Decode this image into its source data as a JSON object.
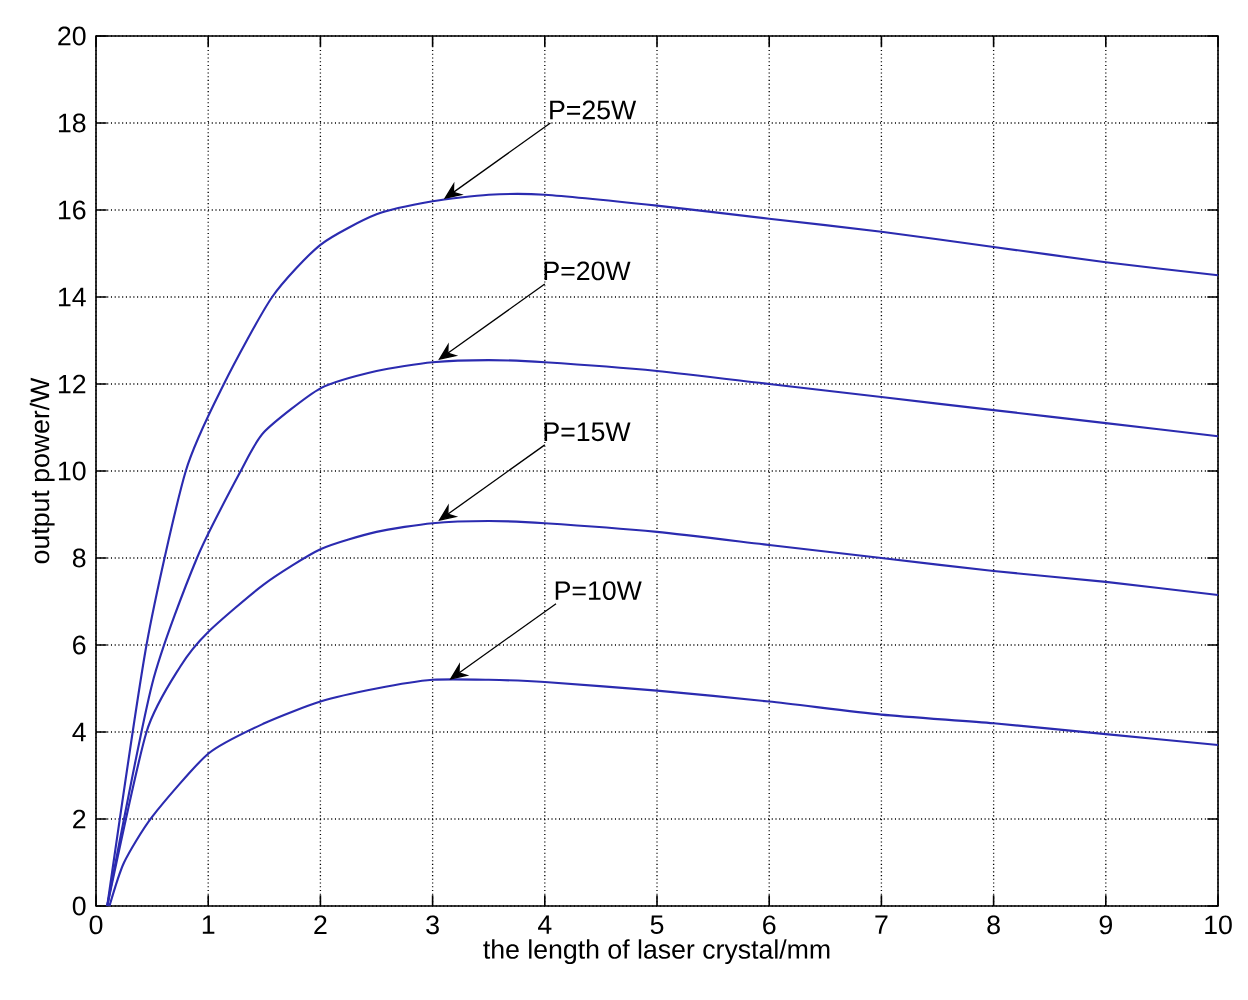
{
  "chart_data": {
    "type": "line",
    "xlabel": "the length of laser crystal/mm",
    "ylabel": "output power/W",
    "xlim": [
      0,
      10
    ],
    "ylim": [
      0,
      20
    ],
    "xticks": [
      0,
      1,
      2,
      3,
      4,
      5,
      6,
      7,
      8,
      9,
      10
    ],
    "yticks": [
      0,
      2,
      4,
      6,
      8,
      10,
      12,
      14,
      16,
      18,
      20
    ],
    "grid": true,
    "line_style": "solid",
    "marker": "none",
    "series": [
      {
        "color": "#2b2bb0",
        "x": [
          0.1,
          0.45,
          0.8,
          1.14,
          1.57,
          2,
          2.5,
          3,
          3.5,
          4,
          5,
          6,
          7,
          8,
          9,
          10
        ],
        "values": [
          0,
          6,
          10,
          12,
          14,
          15.2,
          15.9,
          16.2,
          16.35,
          16.35,
          16.1,
          15.8,
          15.5,
          15.15,
          14.8,
          14.5
        ]
      },
      {
        "color": "#2b2bb0",
        "x": [
          0.1,
          0.5,
          0.9,
          1.29,
          1.5,
          2,
          2.5,
          3,
          3.5,
          4,
          5,
          6,
          7,
          8,
          9,
          10
        ],
        "values": [
          0,
          5.1,
          8,
          10,
          10.9,
          11.9,
          12.3,
          12.5,
          12.55,
          12.5,
          12.3,
          12,
          11.7,
          11.4,
          11.1,
          10.8
        ]
      },
      {
        "color": "#2b2bb0",
        "x": [
          0.1,
          0.45,
          0.75,
          1,
          1.5,
          2,
          2.5,
          3,
          3.5,
          4,
          5,
          6,
          7,
          8,
          9,
          10
        ],
        "values": [
          0,
          4,
          5.5,
          6.3,
          7.4,
          8.2,
          8.6,
          8.8,
          8.85,
          8.8,
          8.6,
          8.3,
          8,
          7.7,
          7.45,
          7.15
        ]
      },
      {
        "color": "#2b2bb0",
        "x": [
          0.12,
          0.25,
          0.5,
          1,
          1.5,
          2,
          2.5,
          3,
          3.5,
          4,
          5,
          6,
          7,
          8,
          9,
          10
        ],
        "values": [
          0,
          1,
          2.05,
          3.5,
          4.2,
          4.7,
          5,
          5.2,
          5.2,
          5.15,
          4.95,
          4.7,
          4.4,
          4.2,
          3.95,
          3.7
        ]
      }
    ],
    "annotations": [
      {
        "text": "P=25W",
        "x": 3.1,
        "y": 16.25
      },
      {
        "text": "P=20W",
        "x": 3.05,
        "y": 12.55
      },
      {
        "text": "P=15W",
        "x": 3.05,
        "y": 8.85
      },
      {
        "text": "P=10W",
        "x": 3.15,
        "y": 5.2
      }
    ]
  }
}
